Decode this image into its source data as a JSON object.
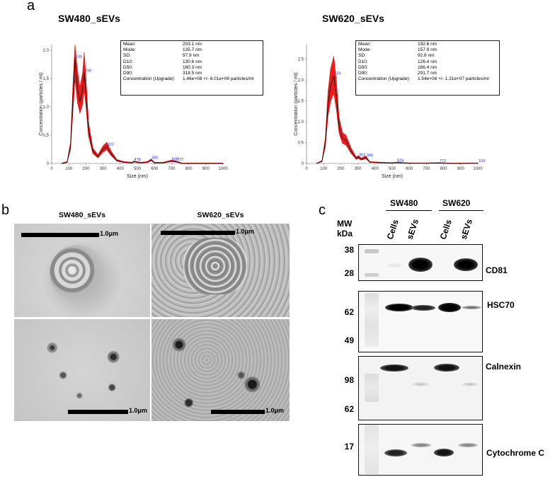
{
  "panel_labels": {
    "a": "a",
    "b": "b",
    "c": "c"
  },
  "nta": [
    {
      "title": "SW480_sEVs",
      "ylabel": "Concentration (particles / ml)",
      "xlabel": "Size (nm)",
      "y_ticks": [
        "0",
        "0.5",
        "1.0",
        "1.5",
        "2.0"
      ],
      "x_ticks": [
        "0",
        "100",
        "200",
        "300",
        "400",
        "500",
        "600",
        "700",
        "800",
        "900",
        "1000"
      ],
      "peak_labels": [
        "136",
        "190",
        "322",
        "478",
        "580",
        "698",
        "727"
      ],
      "stats": [
        {
          "k": "Mean:",
          "v": "203.1 nm"
        },
        {
          "k": "Mode:",
          "v": "135.7 nm"
        },
        {
          "k": "SD:",
          "v": "97.9 nm"
        },
        {
          "k": "D10:",
          "v": "130.6 nm"
        },
        {
          "k": "D50:",
          "v": "180.3 nm"
        },
        {
          "k": "D90:",
          "v": "318.5 nm"
        },
        {
          "k": "Concentration (Upgrade):",
          "v": "1.46e+08 +/- 6.01e+06 particles/ml"
        }
      ]
    },
    {
      "title": "SW620_sEVs",
      "ylabel": "Concentration (particles / ml)",
      "xlabel": "Size (nm)",
      "y_ticks": [
        "0",
        "0.5",
        "1.0",
        "1.5",
        "2.0",
        "2.5"
      ],
      "x_ticks": [
        "0",
        "100",
        "200",
        "300",
        "400",
        "500",
        "600",
        "700",
        "800",
        "900",
        "1000"
      ],
      "peak_labels": [
        "159",
        "302",
        "346",
        "525",
        "772",
        "1000"
      ],
      "stats": [
        {
          "k": "Mean:",
          "v": "192.6 nm"
        },
        {
          "k": "Mode:",
          "v": "157.9 nm"
        },
        {
          "k": "SD:",
          "v": "92.8 nm"
        },
        {
          "k": "D10:",
          "v": "126.4 nm"
        },
        {
          "k": "D50:",
          "v": "166.4 nm"
        },
        {
          "k": "D90:",
          "v": "291.7 nm"
        },
        {
          "k": "Concentration (Upgrade):",
          "v": "1.54e+08 +/- 1.31e+07 particles/ml"
        }
      ]
    }
  ],
  "chart_data": [
    {
      "type": "line",
      "title": "SW480_sEVs",
      "xlabel": "Size (nm)",
      "ylabel": "Concentration (particles / ml)",
      "xlim": [
        0,
        1000
      ],
      "ylim": [
        0,
        2.1
      ],
      "series": [
        {
          "x": [
            60,
            90,
            110,
            125,
            136,
            150,
            165,
            180,
            190,
            200,
            215,
            240,
            270,
            300,
            322,
            345,
            380,
            420,
            470,
            478,
            520,
            560,
            580,
            600,
            650,
            698,
            727,
            760,
            1000
          ],
          "values": [
            0,
            0.02,
            0.3,
            1.2,
            1.85,
            1.35,
            1.1,
            1.3,
            1.6,
            1.25,
            0.6,
            0.22,
            0.12,
            0.25,
            0.3,
            0.18,
            0.05,
            0.02,
            0.01,
            0.03,
            0.01,
            0.02,
            0.06,
            0.01,
            0.01,
            0.04,
            0.03,
            0.0,
            0.0
          ]
        }
      ],
      "peak_labels": [
        "136",
        "190",
        "322",
        "478",
        "580",
        "698",
        "727"
      ]
    },
    {
      "type": "line",
      "title": "SW620_sEVs",
      "xlabel": "Size (nm)",
      "ylabel": "Concentration (particles / ml)",
      "xlim": [
        0,
        1000
      ],
      "ylim": [
        0,
        2.85
      ],
      "series": [
        {
          "x": [
            60,
            90,
            110,
            125,
            140,
            159,
            175,
            190,
            210,
            230,
            260,
            290,
            302,
            320,
            346,
            370,
            420,
            500,
            525,
            600,
            700,
            772,
            850,
            1000
          ],
          "values": [
            0,
            0.05,
            0.5,
            1.4,
            1.85,
            2.1,
            1.6,
            0.9,
            0.6,
            0.55,
            0.3,
            0.12,
            0.15,
            0.1,
            0.14,
            0.03,
            0.02,
            0.01,
            0.02,
            0.005,
            0.005,
            0.01,
            0.0,
            0.005
          ]
        }
      ],
      "peak_labels": [
        "159",
        "302",
        "346",
        "525",
        "772",
        "1000"
      ]
    }
  ],
  "tem": {
    "col_titles": [
      "SW480_sEVs",
      "SW620_sEVs"
    ],
    "scale_labels": [
      "1.0μm",
      "1.0μm",
      "1.0μm",
      "1.0μm"
    ]
  },
  "western": {
    "groups": [
      "SW480",
      "SW620"
    ],
    "lanes": [
      "Cells",
      "sEVs",
      "Cells",
      "sEVs"
    ],
    "mw_header": [
      "MW",
      "kDa"
    ],
    "blots": [
      {
        "protein": "CD81",
        "mw": [
          "38",
          "28"
        ]
      },
      {
        "protein": "HSC70",
        "mw": [
          "62",
          "49"
        ]
      },
      {
        "protein": "Calnexin",
        "mw": [
          "98",
          "62"
        ]
      },
      {
        "protein": "Cytochrome C",
        "mw": [
          "17"
        ]
      }
    ]
  }
}
